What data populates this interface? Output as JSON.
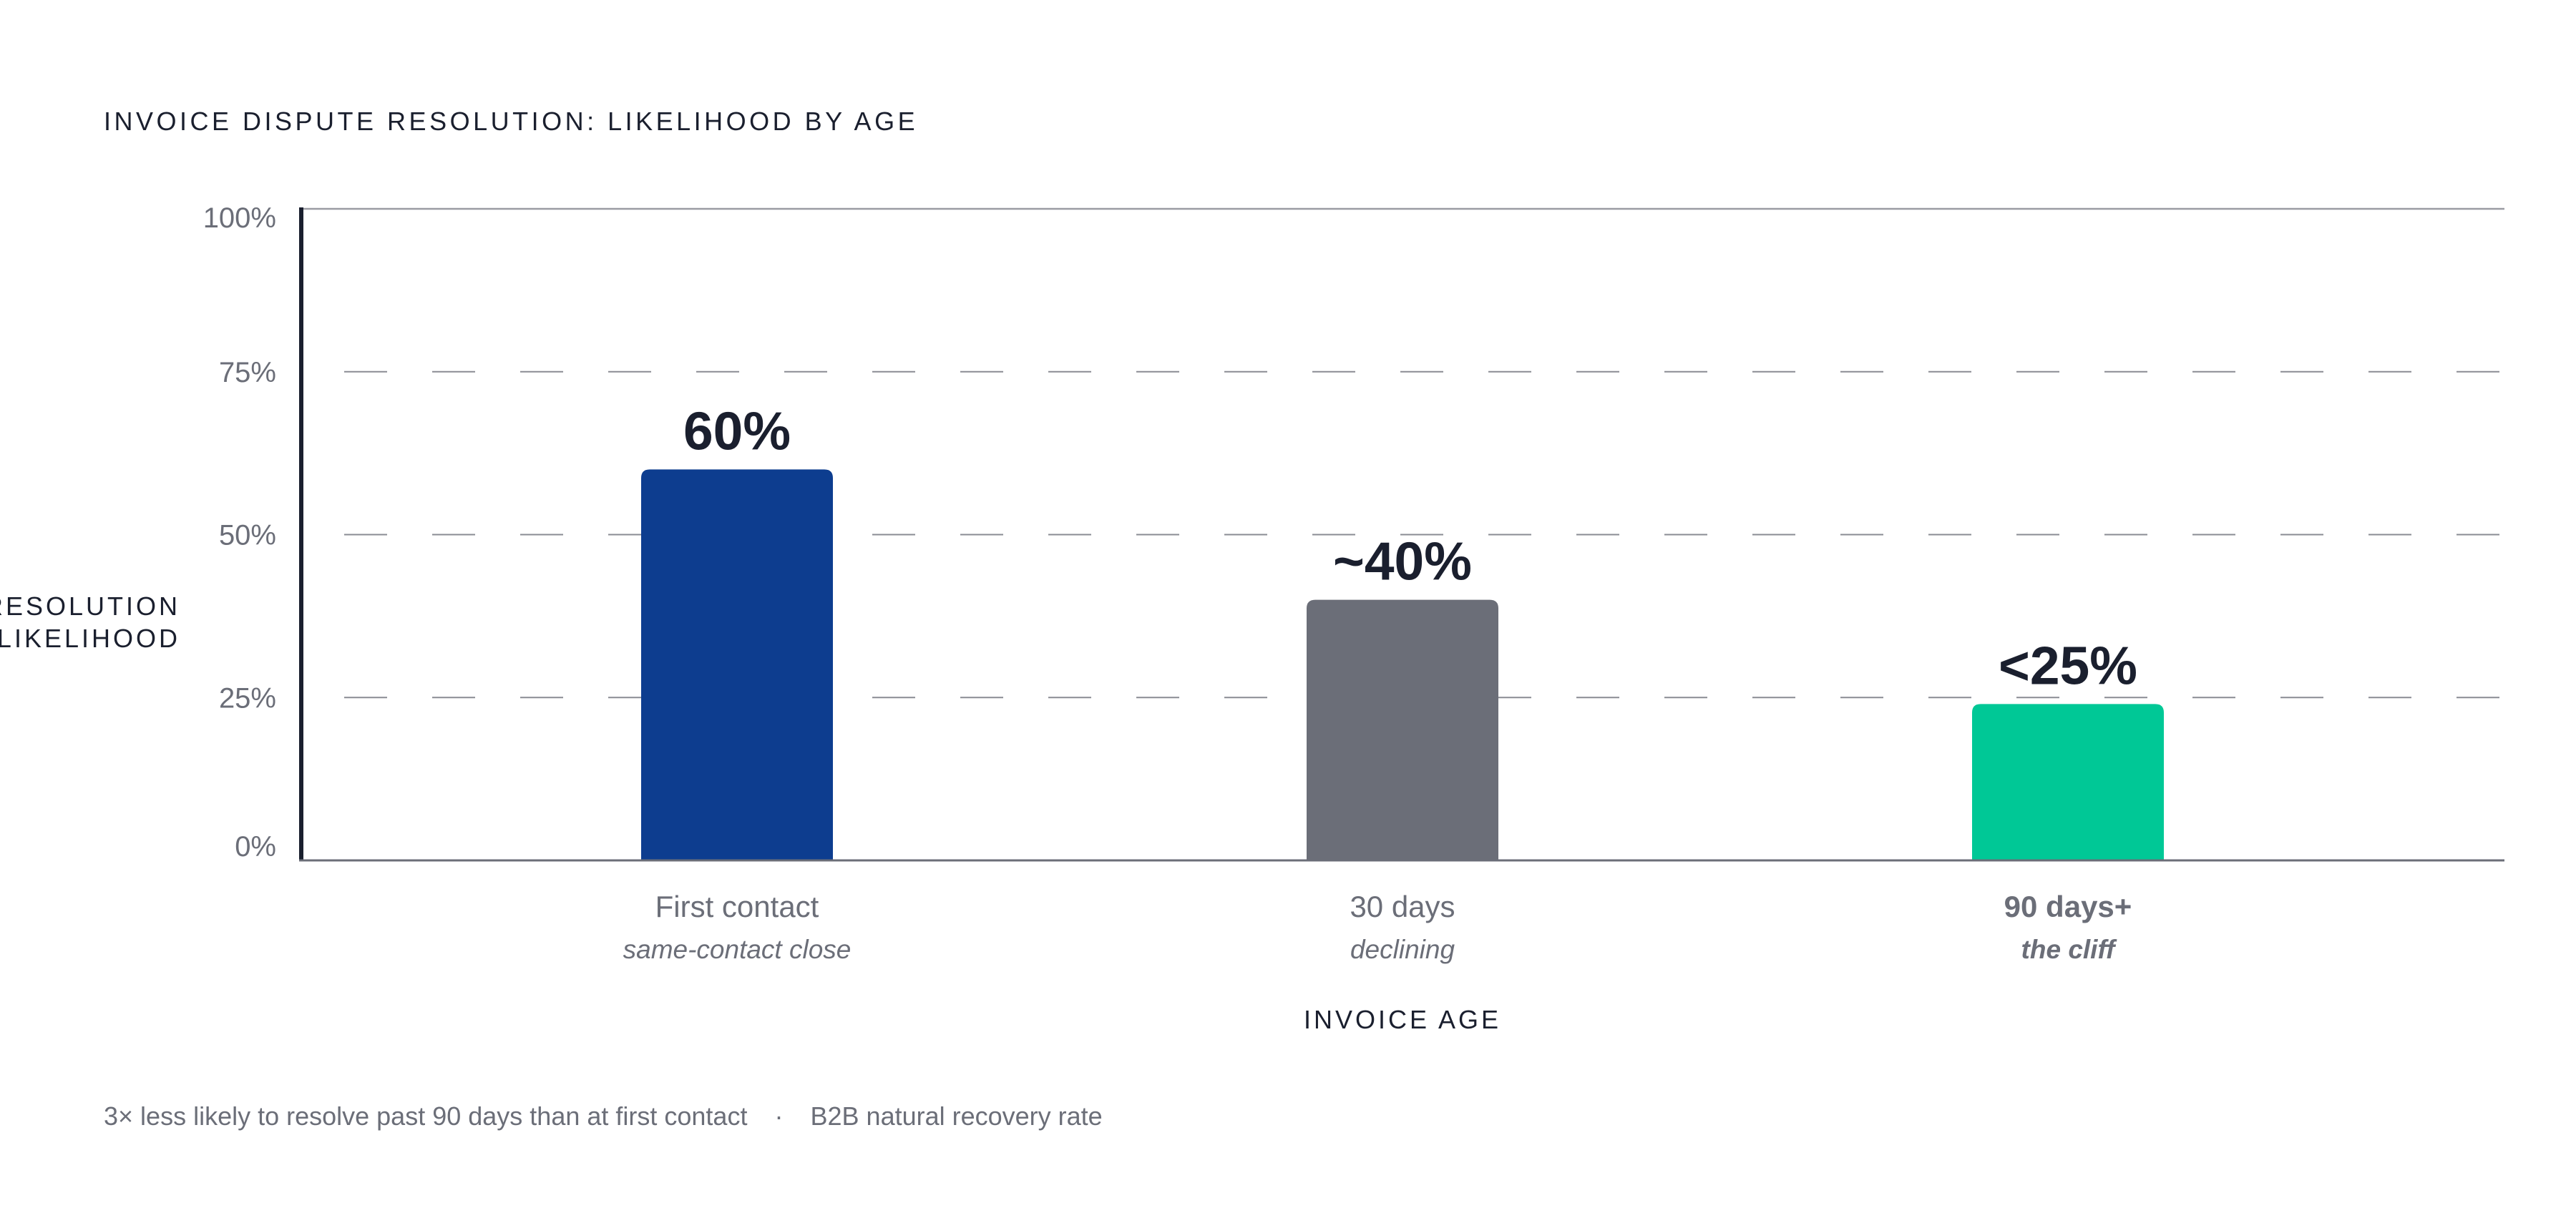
{
  "chart_data": {
    "type": "bar",
    "title": "INVOICE DISPUTE RESOLUTION: LIKELIHOOD BY AGE",
    "ylabel_lines": [
      "RESOLUTION",
      "LIKELIHOOD"
    ],
    "xlabel": "INVOICE AGE",
    "ylim": [
      0,
      100
    ],
    "yticks": [
      0,
      25,
      50,
      75,
      100
    ],
    "ytick_labels": [
      "0%",
      "25%",
      "50%",
      "75%",
      "100%"
    ],
    "grid": "horizontal dashed",
    "categories": [
      "First contact",
      "30 days",
      "90 days+"
    ],
    "subtitles": [
      "same-contact close",
      "declining",
      "the cliff"
    ],
    "values": [
      60,
      40,
      24
    ],
    "value_labels": [
      "60%",
      "~40%",
      "<25%"
    ],
    "bar_colors": [
      "#0d3d8f",
      "#6b6e78",
      "#00c896"
    ],
    "highlight_index": 2,
    "highlight_color": "#00c896"
  },
  "footnote": {
    "main": "3× less likely to resolve past 90 days than at first contact",
    "separator": "·",
    "source": "B2B natural recovery rate"
  }
}
